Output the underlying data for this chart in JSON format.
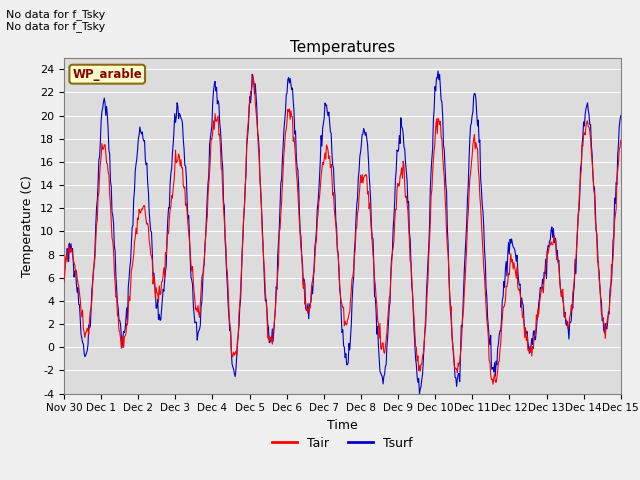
{
  "title": "Temperatures",
  "xlabel": "Time",
  "ylabel": "Temperature (C)",
  "ylim": [
    -4,
    25
  ],
  "xlim_days": 15.0,
  "annotation_line1": "No data for f_Tsky",
  "annotation_line2": "No data for f_Tsky",
  "wp_label": "WP_arable",
  "legend_tair": "Tair",
  "legend_tsurf": "Tsurf",
  "tair_color": "#ff0000",
  "tsurf_color": "#0000cc",
  "fig_facecolor": "#f0f0f0",
  "axes_facecolor": "#dcdcdc",
  "grid_color": "#ffffff",
  "yticks": [
    -4,
    -2,
    0,
    2,
    4,
    6,
    8,
    10,
    12,
    14,
    16,
    18,
    20,
    22,
    24
  ],
  "xtick_labels": [
    "Nov 30",
    "Dec 1",
    "Dec 2",
    "Dec 3",
    "Dec 4",
    "Dec 5",
    "Dec 6",
    "Dec 7",
    "Dec 8",
    "Dec 9",
    "Dec 10",
    "Dec 11",
    "Dec 12",
    "Dec 13",
    "Dec 14",
    "Dec 15"
  ]
}
